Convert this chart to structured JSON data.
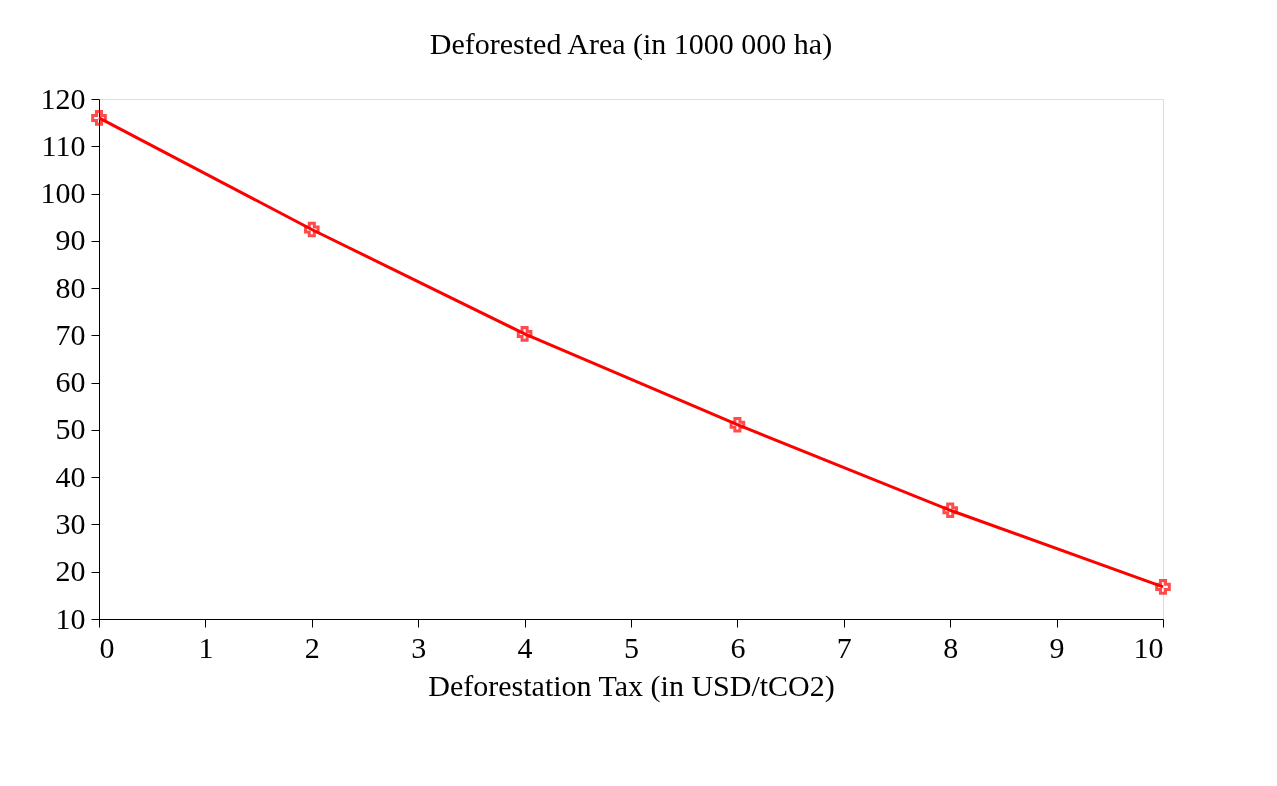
{
  "chart_data": {
    "type": "line",
    "title": "Deforested Area (in 1000 000 ha)",
    "xlabel": "Deforestation Tax (in USD/tCO2)",
    "x": [
      0,
      2,
      4,
      6,
      8,
      10
    ],
    "series": [
      {
        "color": "#ff0000",
        "values": [
          116.0,
          92.4,
          70.3,
          51.1,
          33.0,
          16.8
        ]
      }
    ],
    "xlim": [
      0,
      10
    ],
    "xticks": [
      0,
      1,
      2,
      3,
      4,
      5,
      6,
      7,
      8,
      9,
      10
    ],
    "ylim": [
      10,
      120
    ],
    "yticks": [
      10,
      20,
      30,
      40,
      50,
      60,
      70,
      80,
      90,
      100,
      110,
      120
    ],
    "grid": false,
    "marker": "cross",
    "line_style": "solid"
  }
}
